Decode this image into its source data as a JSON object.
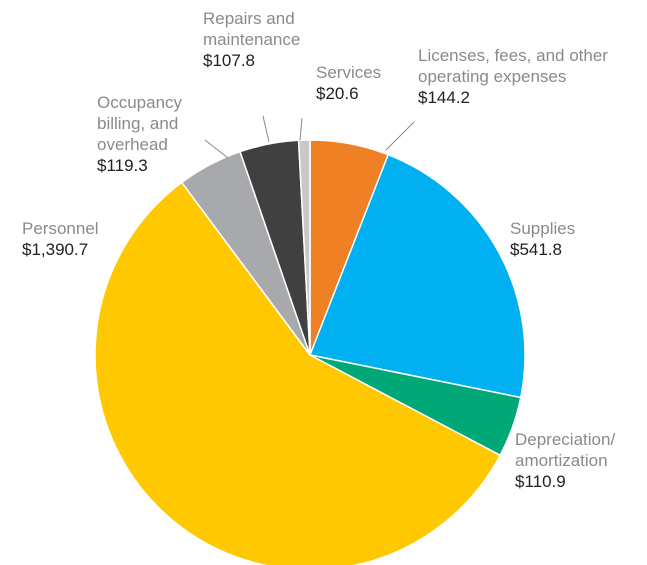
{
  "chart_data": {
    "type": "pie",
    "categories": [
      "Licenses, fees, and other operating expenses",
      "Supplies",
      "Depreciation/ amortization",
      "Personnel",
      "Occupancy billing, and overhead",
      "Repairs and maintenance",
      "Services"
    ],
    "values": [
      144.2,
      541.8,
      110.9,
      1390.7,
      119.3,
      107.8,
      20.6
    ],
    "value_labels": [
      "$144.2",
      "$541.8",
      "$110.9",
      "$1,390.7",
      "$119.3",
      "$107.8",
      "$20.6"
    ],
    "colors": [
      "#f08024",
      "#00b0f0",
      "#00a878",
      "#ffc800",
      "#a7a9ac",
      "#404041",
      "#c8c8c8"
    ]
  }
}
